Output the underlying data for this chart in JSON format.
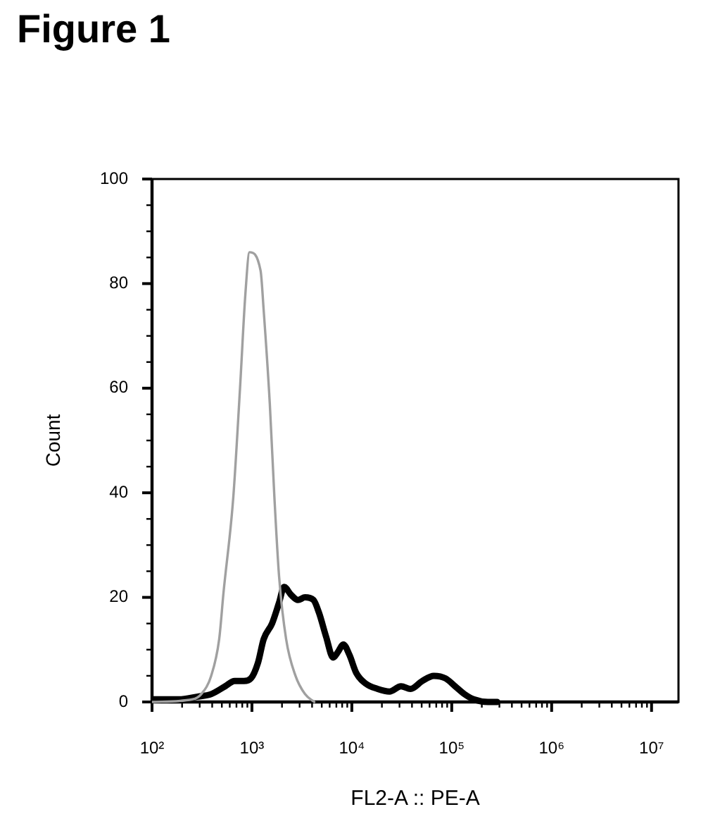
{
  "chart_data": {
    "type": "line",
    "title": "Figure 1",
    "xlabel": "FL2-A :: PE-A",
    "ylabel": "Count",
    "log": "x",
    "grid": false,
    "legend": false,
    "marker": "none",
    "line_style": "solid",
    "xlim": [
      100,
      18600000
    ],
    "ylim": [
      0,
      100
    ],
    "xticks": [
      {
        "value": 100,
        "label": "10²"
      },
      {
        "value": 200,
        "label": null
      },
      {
        "value": 300,
        "label": null
      },
      {
        "value": 400,
        "label": null
      },
      {
        "value": 500,
        "label": null
      },
      {
        "value": 600,
        "label": null
      },
      {
        "value": 700,
        "label": null
      },
      {
        "value": 800,
        "label": null
      },
      {
        "value": 900,
        "label": null
      },
      {
        "value": 1000,
        "label": "10³"
      },
      {
        "value": 2000,
        "label": null
      },
      {
        "value": 3000,
        "label": null
      },
      {
        "value": 4000,
        "label": null
      },
      {
        "value": 5000,
        "label": null
      },
      {
        "value": 6000,
        "label": null
      },
      {
        "value": 7000,
        "label": null
      },
      {
        "value": 8000,
        "label": null
      },
      {
        "value": 9000,
        "label": null
      },
      {
        "value": 10000,
        "label": "10⁴"
      },
      {
        "value": 20000,
        "label": null
      },
      {
        "value": 30000,
        "label": null
      },
      {
        "value": 40000,
        "label": null
      },
      {
        "value": 50000,
        "label": null
      },
      {
        "value": 60000,
        "label": null
      },
      {
        "value": 70000,
        "label": null
      },
      {
        "value": 80000,
        "label": null
      },
      {
        "value": 90000,
        "label": null
      },
      {
        "value": 100000,
        "label": "10⁵"
      },
      {
        "value": 200000,
        "label": null
      },
      {
        "value": 300000,
        "label": null
      },
      {
        "value": 400000,
        "label": null
      },
      {
        "value": 500000,
        "label": null
      },
      {
        "value": 600000,
        "label": null
      },
      {
        "value": 700000,
        "label": null
      },
      {
        "value": 800000,
        "label": null
      },
      {
        "value": 900000,
        "label": null
      },
      {
        "value": 1000000,
        "label": "10⁶"
      },
      {
        "value": 2000000,
        "label": null
      },
      {
        "value": 3000000,
        "label": null
      },
      {
        "value": 4000000,
        "label": null
      },
      {
        "value": 5000000,
        "label": null
      },
      {
        "value": 6000000,
        "label": null
      },
      {
        "value": 7000000,
        "label": null
      },
      {
        "value": 8000000,
        "label": null
      },
      {
        "value": 9000000,
        "label": null
      },
      {
        "value": 10000000,
        "label": "10⁷"
      }
    ],
    "yticks": [
      0,
      {
        "value": 5,
        "label": null
      },
      {
        "value": 10,
        "label": null
      },
      {
        "value": 15,
        "label": null
      },
      20,
      {
        "value": 25,
        "label": null
      },
      {
        "value": 30,
        "label": null
      },
      {
        "value": 35,
        "label": null
      },
      40,
      {
        "value": 45,
        "label": null
      },
      {
        "value": 50,
        "label": null
      },
      {
        "value": 55,
        "label": null
      },
      60,
      {
        "value": 65,
        "label": null
      },
      {
        "value": 70,
        "label": null
      },
      {
        "value": 75,
        "label": null
      },
      80,
      {
        "value": 85,
        "label": null
      },
      {
        "value": 90,
        "label": null
      },
      {
        "value": 95,
        "label": null
      },
      100
    ],
    "series": [
      {
        "color": "#a0a0a0",
        "x": [
          100,
          254,
          311,
          391,
          470,
          520,
          650,
          760,
          860,
          946,
          1220,
          1310,
          1510,
          1680,
          1870,
          2200,
          2730,
          3400,
          4210
        ],
        "values": [
          0,
          0.5,
          1.5,
          5,
          12,
          21,
          39,
          60,
          78,
          86,
          82.5,
          75,
          57,
          39,
          24,
          12,
          5,
          1.5,
          0
        ]
      },
      {
        "color": "#000000",
        "x": [
          101,
          183,
          282,
          391,
          540,
          671,
          832,
          977,
          1150,
          1310,
          1590,
          1870,
          2100,
          2460,
          2890,
          3400,
          4130,
          4700,
          5520,
          6500,
          7230,
          8230,
          9460,
          11100,
          13800,
          18100,
          23800,
          31100,
          38700,
          50600,
          66200,
          86900,
          108000,
          134000,
          166000,
          230000,
          285000
        ],
        "values": [
          0.5,
          0.5,
          1,
          1.5,
          3,
          4,
          4,
          4.5,
          7.5,
          12,
          15,
          19,
          22,
          20.5,
          19.5,
          20,
          19.5,
          17,
          12.5,
          8.5,
          9.5,
          11,
          9,
          5.5,
          3.5,
          2.5,
          2,
          3,
          2.5,
          4,
          5,
          4.5,
          3,
          1.5,
          0.5,
          0,
          0
        ]
      }
    ]
  }
}
